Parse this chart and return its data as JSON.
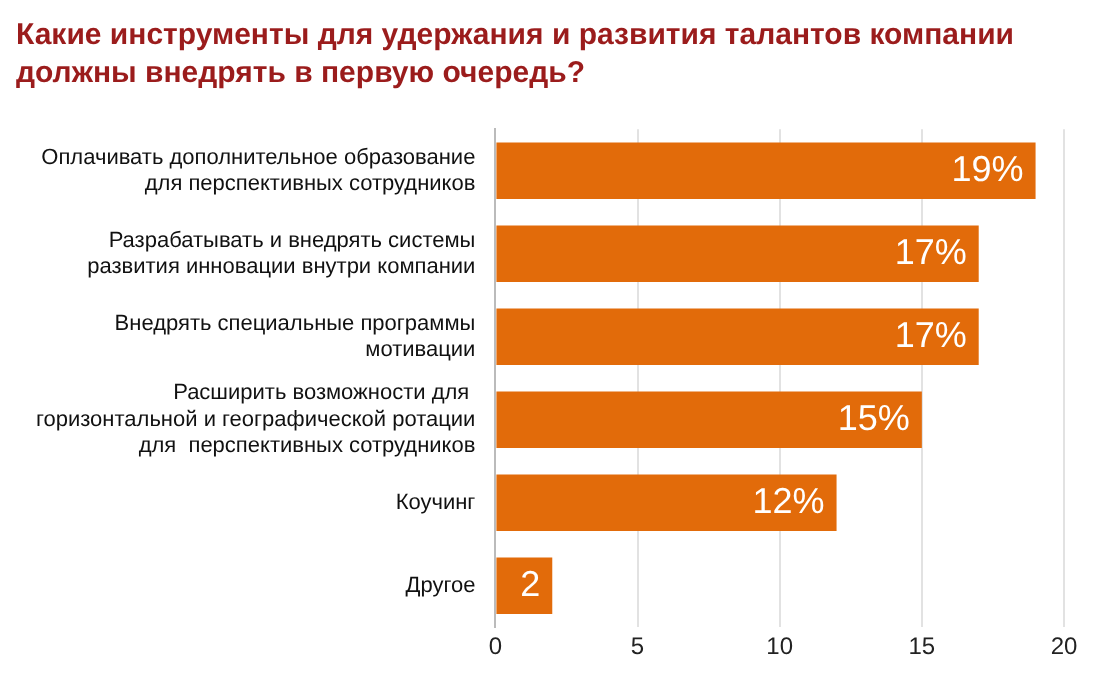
{
  "chart_data": {
    "type": "bar",
    "orientation": "horizontal",
    "title": "Какие инструменты для удержания и развития талантов компании должны внедрять в первую очередь?",
    "categories": [
      "Оплачивать дополнительное образование для перспективных сотрудников",
      "Разрабатывать и внедрять системы развития инновации внутри компании",
      "Внедрять специальные программы мотивации",
      "Расширить возможности для  горизонтальной и географической ротации для  перспективных сотрудников",
      "Коучинг",
      "Другое"
    ],
    "values": [
      19,
      17,
      17,
      15,
      12,
      2
    ],
    "value_labels": [
      "19%",
      "17%",
      "17%",
      "15%",
      "12%",
      "2"
    ],
    "color": "#e26b0a",
    "xlim": [
      0,
      20
    ],
    "xticks": [
      0,
      5,
      10,
      15,
      20
    ],
    "grid": "x",
    "legend": false
  }
}
